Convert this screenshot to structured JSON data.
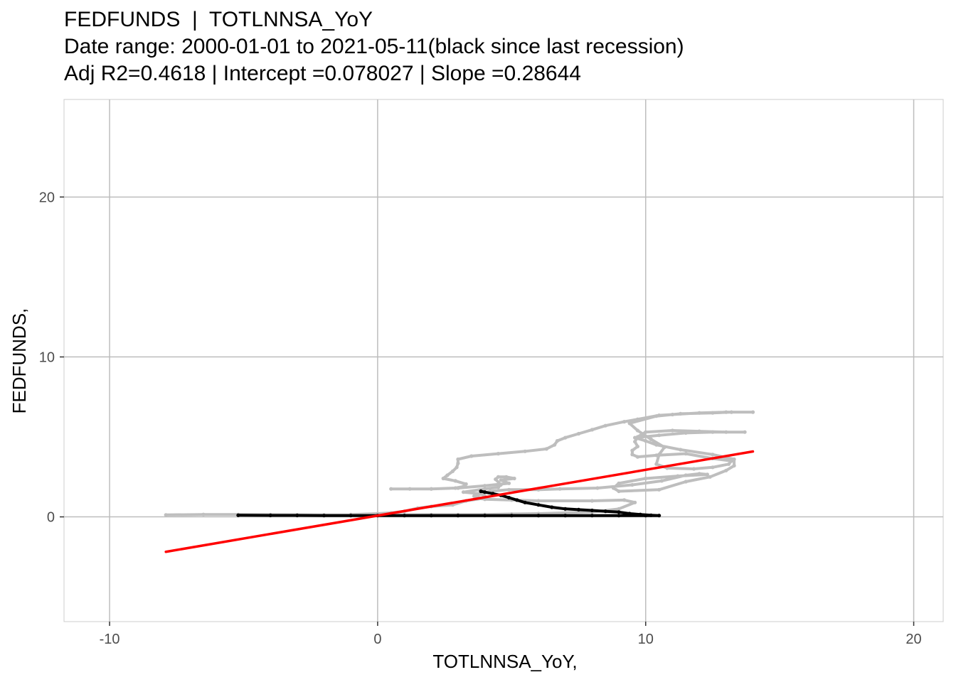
{
  "chart_data": {
    "type": "scatter",
    "title_lines": [
      "FEDFUNDS  |  TOTLNNSA_YoY",
      "Date range: 2000-01-01 to 2021-05-11(black since last recession)",
      "Adj R2=0.4618 | Intercept =0.078027 | Slope =0.28644"
    ],
    "xlabel": "TOTLNNSA_YoY,",
    "ylabel": "FEDFUNDS,",
    "xlim": [
      -11.7,
      21.1
    ],
    "ylim": [
      -6.55,
      26.1
    ],
    "x_ticks": [
      -10,
      0,
      10,
      20
    ],
    "y_ticks": [
      0,
      10,
      20
    ],
    "grid": true,
    "colors": {
      "before_recession": "#bebebe",
      "since_recession": "#000000",
      "fit": "#ff0000"
    },
    "regression": {
      "intercept": 0.078027,
      "slope": 0.28644,
      "x_range": [
        -7.9,
        14.0
      ]
    },
    "series": [
      {
        "color_key": "before_recession",
        "points": [
          [
            -7.9,
            0.12
          ],
          [
            -6.5,
            0.15
          ],
          [
            -5.2,
            0.15
          ],
          [
            -4.0,
            0.14
          ],
          [
            -3.0,
            0.13
          ],
          [
            -2.0,
            0.12
          ],
          [
            -1.0,
            0.12
          ],
          [
            0.0,
            0.12
          ],
          [
            1.0,
            0.13
          ],
          [
            2.0,
            0.14
          ],
          [
            3.0,
            0.14
          ],
          [
            4.0,
            0.15
          ],
          [
            5.0,
            0.18
          ],
          [
            6.0,
            0.2
          ],
          [
            7.0,
            0.25
          ],
          [
            8.0,
            0.3
          ],
          [
            9.0,
            0.5
          ],
          [
            9.6,
            0.9
          ],
          [
            9.2,
            1.05
          ],
          [
            8.0,
            1.0
          ],
          [
            6.0,
            1.0
          ],
          [
            5.0,
            1.05
          ],
          [
            4.0,
            1.1
          ],
          [
            3.6,
            1.3
          ],
          [
            4.2,
            1.6
          ],
          [
            4.9,
            1.7
          ],
          [
            6.0,
            1.7
          ],
          [
            6.8,
            1.75
          ],
          [
            8.2,
            1.8
          ],
          [
            9.5,
            2.0
          ],
          [
            10.6,
            2.25
          ],
          [
            11.5,
            2.6
          ],
          [
            12.0,
            2.7
          ],
          [
            12.3,
            2.65
          ],
          [
            11.2,
            2.55
          ],
          [
            10.0,
            2.4
          ],
          [
            9.0,
            2.1
          ],
          [
            8.8,
            1.8
          ],
          [
            9.0,
            1.6
          ],
          [
            10.5,
            1.7
          ],
          [
            11.5,
            2.2
          ],
          [
            12.4,
            2.5
          ],
          [
            13.0,
            2.9
          ],
          [
            13.3,
            3.2
          ],
          [
            13.3,
            3.6
          ],
          [
            12.5,
            3.9
          ],
          [
            11.3,
            4.2
          ],
          [
            10.4,
            4.5
          ],
          [
            10.0,
            4.75
          ],
          [
            9.6,
            4.95
          ],
          [
            10.5,
            5.1
          ],
          [
            11.5,
            5.25
          ],
          [
            12.5,
            5.3
          ],
          [
            13.7,
            5.3
          ],
          [
            13.0,
            5.3
          ],
          [
            12.0,
            5.35
          ],
          [
            11.0,
            5.4
          ],
          [
            10.0,
            5.3
          ],
          [
            9.7,
            5.0
          ],
          [
            9.6,
            4.7
          ],
          [
            9.7,
            4.4
          ],
          [
            9.5,
            4.15
          ],
          [
            9.5,
            3.9
          ],
          [
            9.7,
            3.75
          ],
          [
            10.4,
            3.85
          ],
          [
            11.5,
            3.95
          ],
          [
            12.5,
            3.65
          ],
          [
            13.2,
            3.5
          ],
          [
            13.1,
            3.3
          ],
          [
            12.5,
            3.1
          ],
          [
            11.8,
            3.0
          ],
          [
            10.8,
            3.05
          ],
          [
            10.4,
            3.3
          ],
          [
            10.5,
            3.9
          ],
          [
            10.7,
            4.35
          ],
          [
            10.2,
            4.85
          ],
          [
            9.7,
            5.4
          ],
          [
            9.4,
            5.85
          ],
          [
            10.4,
            6.3
          ],
          [
            11.3,
            6.45
          ],
          [
            12.5,
            6.5
          ],
          [
            13.2,
            6.55
          ],
          [
            14.0,
            6.55
          ],
          [
            13.0,
            6.55
          ],
          [
            12.0,
            6.5
          ],
          [
            11.0,
            6.4
          ],
          [
            10.5,
            6.35
          ],
          [
            9.7,
            6.1
          ],
          [
            9.2,
            5.95
          ],
          [
            8.5,
            5.7
          ],
          [
            8.0,
            5.45
          ],
          [
            7.5,
            5.2
          ],
          [
            7.0,
            4.95
          ],
          [
            6.7,
            4.75
          ],
          [
            6.6,
            4.5
          ],
          [
            6.3,
            4.25
          ],
          [
            5.5,
            4.1
          ],
          [
            4.5,
            3.95
          ],
          [
            3.5,
            3.8
          ],
          [
            3.0,
            3.6
          ],
          [
            3.0,
            3.35
          ],
          [
            2.95,
            3.1
          ],
          [
            2.8,
            2.85
          ],
          [
            2.6,
            2.6
          ],
          [
            2.45,
            2.4
          ],
          [
            2.9,
            2.25
          ],
          [
            3.3,
            2.05
          ],
          [
            3.2,
            1.9
          ],
          [
            2.9,
            1.8
          ],
          [
            2.0,
            1.75
          ],
          [
            1.2,
            1.75
          ],
          [
            0.5,
            1.75
          ],
          [
            2.0,
            1.75
          ],
          [
            3.0,
            1.8
          ],
          [
            4.0,
            1.95
          ],
          [
            4.9,
            2.1
          ],
          [
            4.6,
            2.3
          ],
          [
            5.1,
            2.4
          ],
          [
            4.8,
            2.5
          ],
          [
            4.5,
            2.5
          ],
          [
            4.4,
            2.35
          ],
          [
            4.6,
            2.0
          ],
          [
            4.5,
            1.85
          ],
          [
            4.0,
            1.75
          ],
          [
            3.2,
            1.55
          ],
          [
            3.8,
            1.45
          ],
          [
            4.0,
            1.3
          ],
          [
            3.9,
            1.15
          ],
          [
            3.3,
            1.0
          ],
          [
            2.8,
            0.75
          ],
          [
            2.0,
            0.65
          ],
          [
            1.5,
            0.55
          ],
          [
            1.0,
            0.35
          ],
          [
            0.5,
            0.25
          ],
          [
            0.0,
            0.2
          ],
          [
            -1.0,
            0.15
          ]
        ]
      },
      {
        "color_key": "since_recession",
        "points": [
          [
            -5.2,
            0.1
          ],
          [
            -4.0,
            0.09
          ],
          [
            -3.0,
            0.09
          ],
          [
            -2.0,
            0.08
          ],
          [
            -1.0,
            0.08
          ],
          [
            0.0,
            0.08
          ],
          [
            1.0,
            0.08
          ],
          [
            2.0,
            0.08
          ],
          [
            3.0,
            0.08
          ],
          [
            4.0,
            0.08
          ],
          [
            5.0,
            0.08
          ],
          [
            6.0,
            0.08
          ],
          [
            7.0,
            0.08
          ],
          [
            8.0,
            0.08
          ],
          [
            9.0,
            0.08
          ],
          [
            10.0,
            0.08
          ],
          [
            10.5,
            0.08
          ],
          [
            10.2,
            0.1
          ],
          [
            9.8,
            0.15
          ],
          [
            9.4,
            0.2
          ],
          [
            9.0,
            0.3
          ],
          [
            8.5,
            0.35
          ],
          [
            8.0,
            0.4
          ],
          [
            7.5,
            0.45
          ],
          [
            7.0,
            0.5
          ],
          [
            6.5,
            0.6
          ],
          [
            6.0,
            0.75
          ],
          [
            5.5,
            0.9
          ],
          [
            5.2,
            1.05
          ],
          [
            4.9,
            1.2
          ],
          [
            4.6,
            1.35
          ],
          [
            4.3,
            1.45
          ],
          [
            4.0,
            1.55
          ],
          [
            3.85,
            1.6
          ]
        ]
      }
    ]
  }
}
